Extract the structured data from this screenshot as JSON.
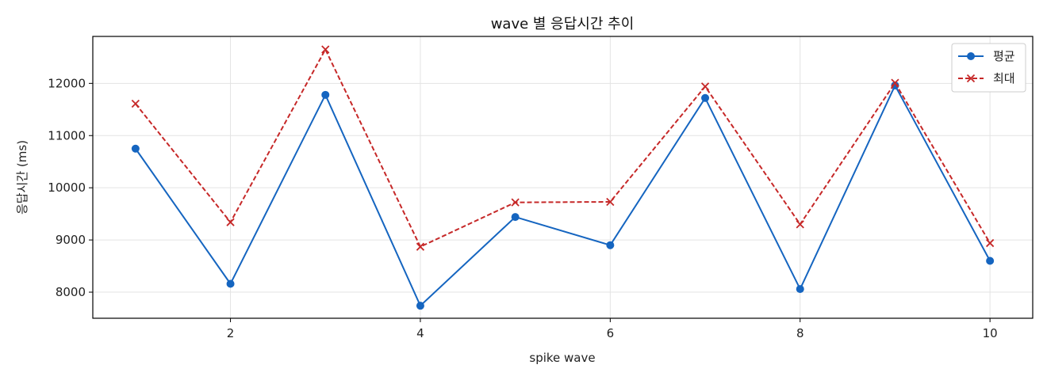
{
  "chart_data": {
    "type": "line",
    "title": "wave 별 응답시간 추이",
    "xlabel": "spike wave",
    "ylabel": "응답시간 (ms)",
    "x": [
      1,
      2,
      3,
      4,
      5,
      6,
      7,
      8,
      9,
      10
    ],
    "xticks": [
      2,
      4,
      6,
      8,
      10
    ],
    "yticks": [
      8000,
      9000,
      10000,
      11000,
      12000
    ],
    "xlim": [
      0.55,
      10.45
    ],
    "ylim": [
      7500,
      12900
    ],
    "grid": true,
    "legend_position": "top-right",
    "series": [
      {
        "name": "평균",
        "color": "#1565c0",
        "line_style": "solid",
        "marker": "circle",
        "values": [
          10750,
          8160,
          11780,
          7740,
          9440,
          8900,
          11720,
          8060,
          11960,
          8600
        ]
      },
      {
        "name": "최대",
        "color": "#c62828",
        "line_style": "dashed",
        "marker": "x",
        "values": [
          11610,
          9340,
          12650,
          8870,
          9720,
          9730,
          11940,
          9300,
          12010,
          8940
        ]
      }
    ]
  }
}
